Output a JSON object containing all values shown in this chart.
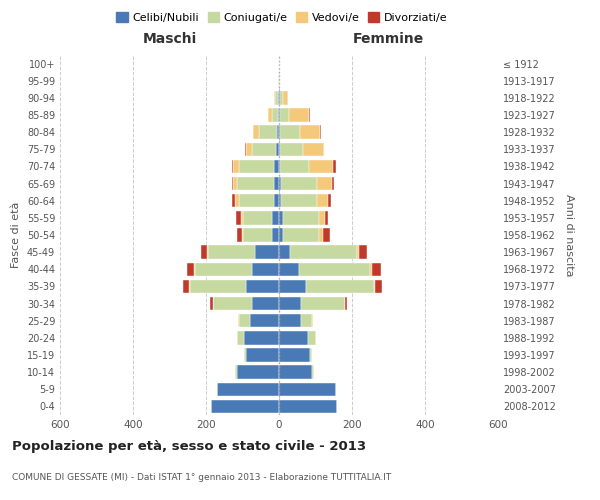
{
  "age_groups": [
    "0-4",
    "5-9",
    "10-14",
    "15-19",
    "20-24",
    "25-29",
    "30-34",
    "35-39",
    "40-44",
    "45-49",
    "50-54",
    "55-59",
    "60-64",
    "65-69",
    "70-74",
    "75-79",
    "80-84",
    "85-89",
    "90-94",
    "95-99",
    "100+"
  ],
  "birth_years": [
    "2008-2012",
    "2003-2007",
    "1998-2002",
    "1993-1997",
    "1988-1992",
    "1983-1987",
    "1978-1982",
    "1973-1977",
    "1968-1972",
    "1963-1967",
    "1958-1962",
    "1953-1957",
    "1948-1952",
    "1943-1947",
    "1938-1942",
    "1933-1937",
    "1928-1932",
    "1923-1927",
    "1918-1922",
    "1913-1917",
    "≤ 1912"
  ],
  "males": {
    "celibi": [
      185,
      170,
      115,
      90,
      95,
      80,
      75,
      90,
      75,
      65,
      20,
      20,
      15,
      15,
      15,
      8,
      5,
      2,
      2,
      0,
      0
    ],
    "coniugati": [
      0,
      0,
      5,
      5,
      20,
      30,
      105,
      155,
      155,
      130,
      80,
      80,
      95,
      100,
      95,
      65,
      50,
      18,
      8,
      2,
      0
    ],
    "vedovi": [
      0,
      0,
      0,
      0,
      0,
      2,
      2,
      2,
      2,
      2,
      2,
      5,
      10,
      10,
      15,
      18,
      15,
      10,
      5,
      2,
      0
    ],
    "divorziati": [
      0,
      0,
      0,
      0,
      0,
      0,
      8,
      15,
      20,
      18,
      12,
      12,
      8,
      5,
      5,
      2,
      2,
      0,
      0,
      0,
      0
    ]
  },
  "females": {
    "nubili": [
      160,
      155,
      90,
      85,
      80,
      60,
      60,
      75,
      55,
      30,
      10,
      10,
      5,
      5,
      2,
      2,
      2,
      2,
      2,
      0,
      0
    ],
    "coniugate": [
      0,
      0,
      5,
      5,
      20,
      30,
      120,
      185,
      195,
      185,
      100,
      100,
      100,
      100,
      80,
      65,
      55,
      25,
      8,
      2,
      0
    ],
    "vedove": [
      0,
      0,
      0,
      0,
      0,
      2,
      2,
      2,
      5,
      5,
      10,
      15,
      30,
      40,
      65,
      55,
      55,
      55,
      15,
      2,
      0
    ],
    "divorziate": [
      0,
      0,
      0,
      0,
      0,
      0,
      5,
      20,
      25,
      20,
      20,
      10,
      8,
      5,
      10,
      2,
      2,
      2,
      0,
      0,
      0
    ]
  },
  "colors": {
    "celibi": "#4a7ab5",
    "coniugati": "#c5d9a0",
    "vedovi": "#f5c97a",
    "divorziati": "#c0392b"
  },
  "legend_labels": [
    "Celibi/Nubili",
    "Coniugati/e",
    "Vedovi/e",
    "Divorziati/e"
  ],
  "title": "Popolazione per età, sesso e stato civile - 2013",
  "subtitle": "COMUNE DI GESSATE (MI) - Dati ISTAT 1° gennaio 2013 - Elaborazione TUTTITALIA.IT",
  "xlabel_left": "Maschi",
  "xlabel_right": "Femmine",
  "ylabel_left": "Fasce di età",
  "ylabel_right": "Anni di nascita",
  "xlim": 600,
  "bg_color": "#ffffff",
  "grid_color": "#cccccc"
}
